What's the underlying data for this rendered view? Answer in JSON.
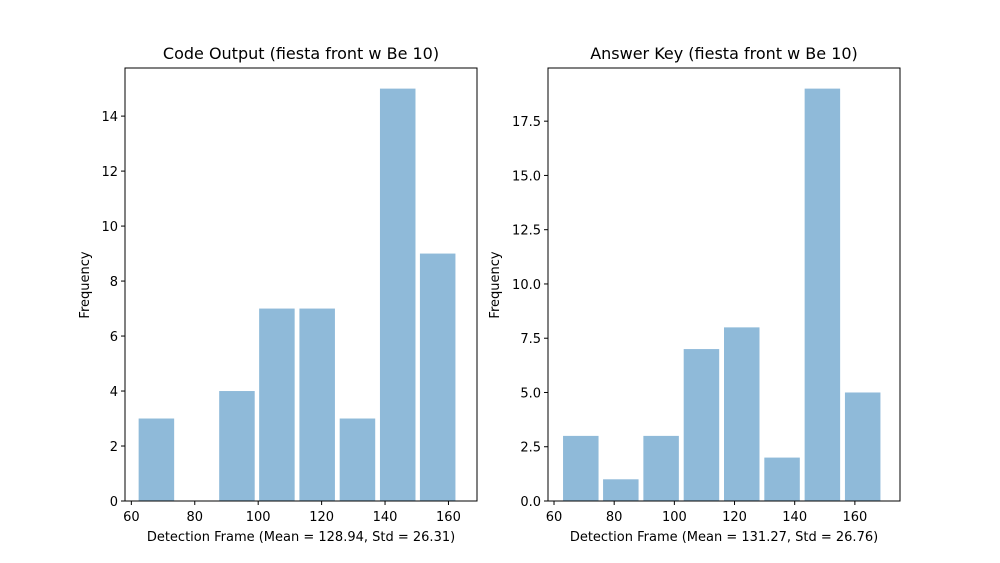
{
  "chart_data": [
    {
      "type": "bar",
      "title": "Code Output (fiesta front w Be 10)",
      "xlabel": "Detection Frame (Mean = 128.94, Std = 26.31)",
      "ylabel": "Frequency",
      "xlim": [
        58,
        169
      ],
      "ylim": [
        0,
        15.75
      ],
      "xticks": [
        60,
        80,
        100,
        120,
        140,
        160
      ],
      "yticks": [
        0,
        2,
        4,
        6,
        8,
        10,
        12,
        14
      ],
      "ytick_labels": [
        "0",
        "2",
        "4",
        "6",
        "8",
        "10",
        "12",
        "14"
      ],
      "bar_color": "#8fbad9",
      "bins": [
        {
          "x0": 62.3,
          "x1": 73.5,
          "value": 3
        },
        {
          "x0": 75.0,
          "x1": 86.2,
          "value": 0
        },
        {
          "x0": 87.7,
          "x1": 98.9,
          "value": 4
        },
        {
          "x0": 100.3,
          "x1": 111.5,
          "value": 7
        },
        {
          "x0": 113.0,
          "x1": 124.2,
          "value": 7
        },
        {
          "x0": 125.7,
          "x1": 136.9,
          "value": 3
        },
        {
          "x0": 138.4,
          "x1": 149.6,
          "value": 15
        },
        {
          "x0": 151.0,
          "x1": 162.2,
          "value": 9
        }
      ]
    },
    {
      "type": "bar",
      "title": "Answer Key (fiesta front w Be 10)",
      "xlabel": "Detection Frame (Mean = 131.27, Std = 26.76)",
      "ylabel": "Frequency",
      "xlim": [
        58,
        175
      ],
      "ylim": [
        0,
        19.95
      ],
      "xticks": [
        60,
        80,
        100,
        120,
        140,
        160
      ],
      "yticks": [
        0,
        2.5,
        5,
        7.5,
        10,
        12.5,
        15,
        17.5
      ],
      "ytick_labels": [
        "0.0",
        "2.5",
        "5.0",
        "7.5",
        "10.0",
        "12.5",
        "15.0",
        "17.5"
      ],
      "bar_color": "#8fbad9",
      "bins": [
        {
          "x0": 63.0,
          "x1": 74.8,
          "value": 3
        },
        {
          "x0": 76.3,
          "x1": 88.1,
          "value": 1
        },
        {
          "x0": 89.7,
          "x1": 101.5,
          "value": 3
        },
        {
          "x0": 103.1,
          "x1": 114.9,
          "value": 7
        },
        {
          "x0": 116.5,
          "x1": 128.3,
          "value": 8
        },
        {
          "x0": 129.9,
          "x1": 141.7,
          "value": 2
        },
        {
          "x0": 143.3,
          "x1": 155.1,
          "value": 19
        },
        {
          "x0": 156.7,
          "x1": 168.5,
          "value": 5
        }
      ]
    }
  ]
}
